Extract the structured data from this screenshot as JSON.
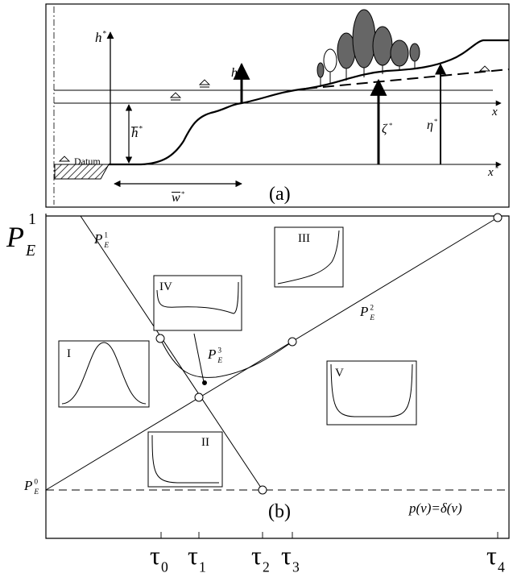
{
  "panel_a": {
    "h_star": {
      "base": "h",
      "sup": "*"
    },
    "h": "h",
    "h_bar_star": {
      "base": "h",
      "sup": "*"
    },
    "datum": "Datum",
    "w_bar_star": {
      "base": "w",
      "sup": "*"
    },
    "x": "x",
    "zeta_star": {
      "base": "ζ",
      "sup": "*"
    },
    "eta_star": {
      "base": "η",
      "sup": "*"
    },
    "x_star": {
      "base": "x",
      "sup": "*"
    },
    "label": "(a)"
  },
  "panel_b": {
    "axis_label": {
      "base": "P",
      "sub": "E"
    },
    "axis_top": "1",
    "curves": [
      {
        "base": "P",
        "sub": "E",
        "sup": "1"
      },
      {
        "base": "P",
        "sub": "E",
        "sup": "2"
      },
      {
        "base": "P",
        "sub": "E",
        "sup": "3"
      },
      {
        "base": "P",
        "sub": "E",
        "sup": "0"
      }
    ],
    "regions": [
      "I",
      "II",
      "III",
      "IV",
      "V"
    ],
    "label": "(b)",
    "delta_note": "p(v)=δ(v)",
    "taus": [
      {
        "base": "τ",
        "sub": "0"
      },
      {
        "base": "τ",
        "sub": "1"
      },
      {
        "base": "τ",
        "sub": "2"
      },
      {
        "base": "τ",
        "sub": "3"
      },
      {
        "base": "τ",
        "sub": "4"
      }
    ]
  }
}
